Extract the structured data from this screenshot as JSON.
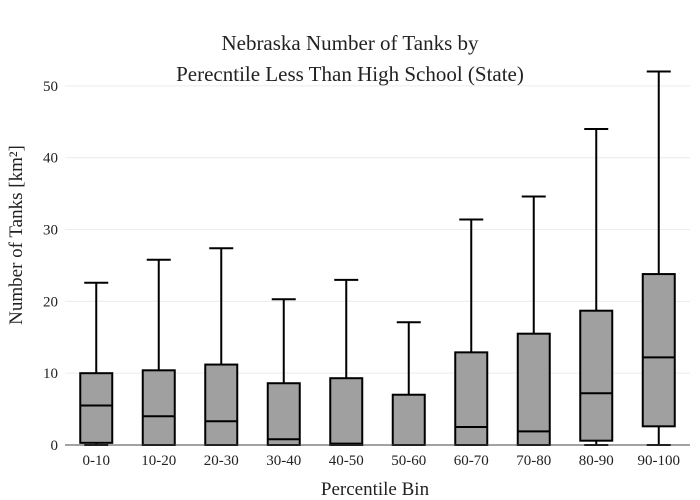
{
  "chart_data": {
    "type": "box",
    "title_lines": [
      "Nebraska Number of Tanks by",
      "Perecntile Less Than High School (State)"
    ],
    "xlabel": "Percentile Bin",
    "ylabel": "Number of Tanks  [km²]",
    "ylim": [
      0,
      55
    ],
    "yticks": [
      0,
      10,
      20,
      30,
      40,
      50
    ],
    "grid": true,
    "legend": "none",
    "box_color": "#a0a0a0",
    "line_color": "#000000",
    "categories": [
      "0-10",
      "10-20",
      "20-30",
      "30-40",
      "40-50",
      "50-60",
      "60-70",
      "70-80",
      "80-90",
      "90-100"
    ],
    "boxes": [
      {
        "whisker_low": 0,
        "q1": 0.3,
        "median": 5.5,
        "q3": 10,
        "whisker_high": 22.6
      },
      {
        "whisker_low": 0,
        "q1": 0,
        "median": 4,
        "q3": 10.4,
        "whisker_high": 25.8
      },
      {
        "whisker_low": 0,
        "q1": 0,
        "median": 3.3,
        "q3": 11.2,
        "whisker_high": 27.4
      },
      {
        "whisker_low": 0,
        "q1": 0,
        "median": 0.8,
        "q3": 8.6,
        "whisker_high": 20.3
      },
      {
        "whisker_low": 0,
        "q1": 0,
        "median": 0.2,
        "q3": 9.3,
        "whisker_high": 23
      },
      {
        "whisker_low": 0,
        "q1": 0,
        "median": 0,
        "q3": 7,
        "whisker_high": 17.1
      },
      {
        "whisker_low": 0,
        "q1": 0,
        "median": 2.5,
        "q3": 12.9,
        "whisker_high": 31.4
      },
      {
        "whisker_low": 0,
        "q1": 0,
        "median": 1.9,
        "q3": 15.5,
        "whisker_high": 34.6
      },
      {
        "whisker_low": 0,
        "q1": 0.6,
        "median": 7.2,
        "q3": 18.7,
        "whisker_high": 44
      },
      {
        "whisker_low": 0,
        "q1": 2.6,
        "median": 12.2,
        "q3": 23.8,
        "whisker_high": 52
      }
    ]
  }
}
